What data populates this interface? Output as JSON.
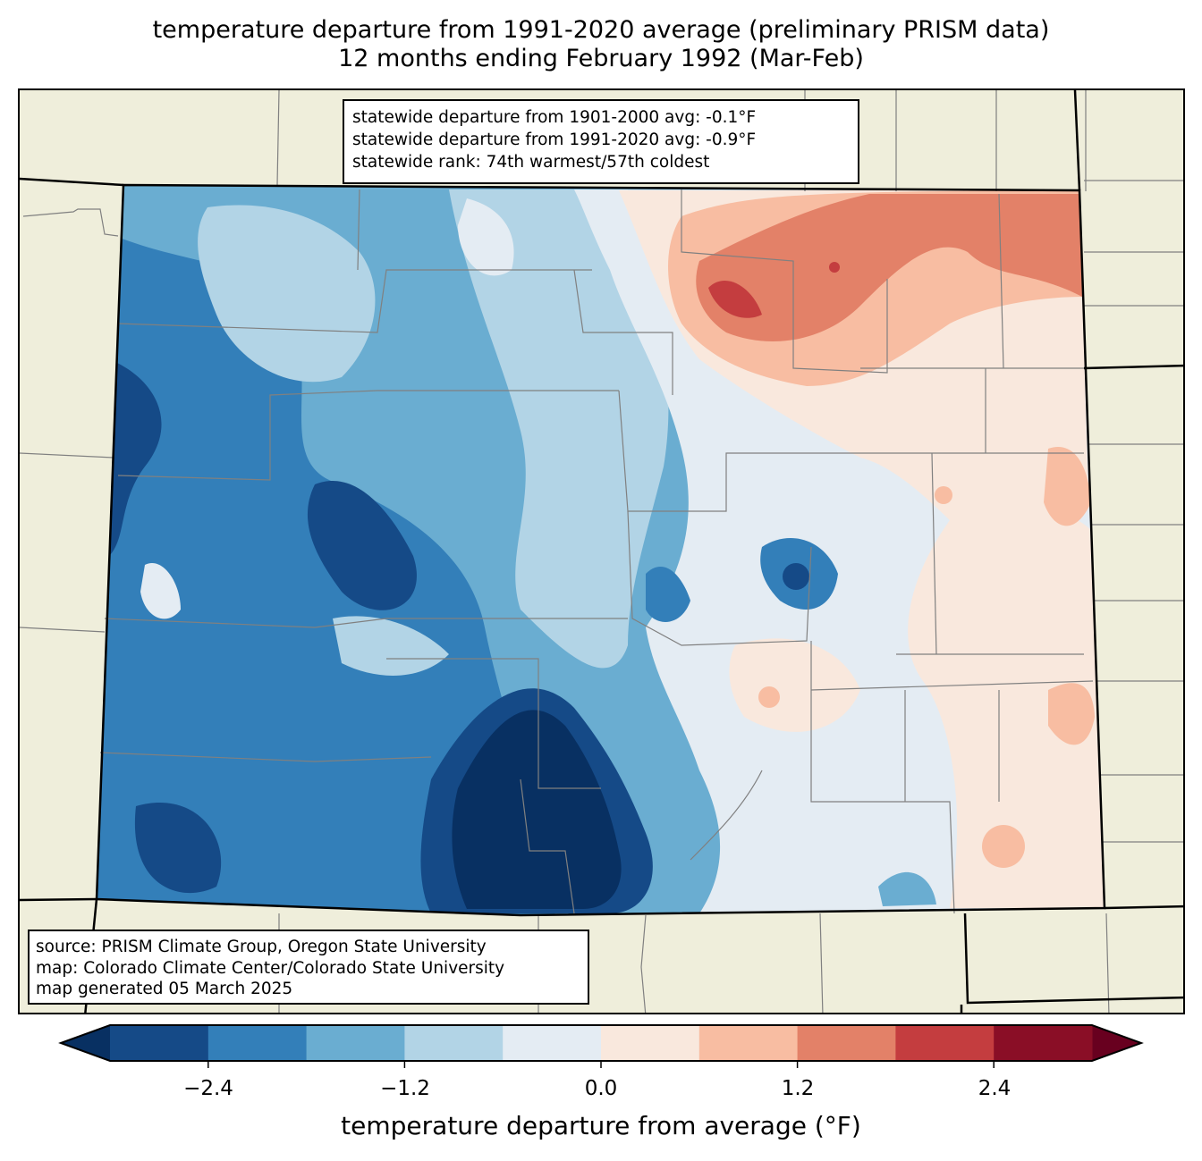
{
  "title": {
    "line1": "temperature departure from 1991-2020 average (preliminary PRISM data)",
    "line2": "12 months ending February 1992 (Mar-Feb)"
  },
  "stats": {
    "line1": "statewide departure from 1901-2000 avg: -0.1°F",
    "line2": "statewide departure from 1991-2020 avg: -0.9°F",
    "line3": "statewide rank: 74th warmest/57th coldest",
    "departure_1901_2000_F": -0.1,
    "departure_1991_2020_F": -0.9,
    "rank_warmest": 74,
    "rank_coldest": 57
  },
  "source": {
    "line1": "source: PRISM Climate Group, Oregon State University",
    "line2": "map: Colorado Climate Center/Colorado State University",
    "line3": "map generated 05 March 2025"
  },
  "colorbar": {
    "label": "temperature departure from average (°F)",
    "ticks": [
      "−2.4",
      "−1.2",
      "0.0",
      "1.2",
      "2.4"
    ],
    "tick_values": [
      -2.4,
      -1.2,
      0.0,
      1.2,
      2.4
    ],
    "levels": [
      -3.0,
      -2.4,
      -1.8,
      -1.2,
      -0.6,
      0.0,
      0.6,
      1.2,
      1.8,
      2.4,
      3.0
    ],
    "colors": [
      "#154a87",
      "#337fb9",
      "#6aadd1",
      "#b2d4e6",
      "#e4ecf3",
      "#f9e8dd",
      "#f8bda2",
      "#e38168",
      "#c43d3f",
      "#8a0e26"
    ],
    "under_color": "#083062",
    "over_color": "#68001f",
    "extend": "both"
  },
  "map": {
    "region": "Colorado",
    "background_color": "#efeedb",
    "state_border_color": "#000000",
    "county_border_color": "#808080",
    "pattern": "cold departures (blue) across western mountains and San Luis Valley; warm departures (red) in northeast plains; near-normal on southeast plains"
  }
}
